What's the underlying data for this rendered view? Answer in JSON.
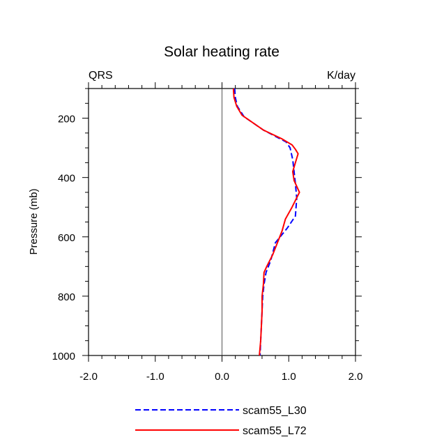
{
  "chart_data": {
    "type": "line",
    "title": "Solar heating rate",
    "left_label": "QRS",
    "right_label": "K/day",
    "ylabel": "Pressure (mb)",
    "xlabel": "",
    "xlim": [
      -2.0,
      2.0
    ],
    "ylim": [
      100,
      1000
    ],
    "y_inverted": true,
    "x_ticks": [
      -2.0,
      -1.0,
      0.0,
      1.0,
      2.0
    ],
    "x_tick_labels": [
      "-2.0",
      "-1.0",
      "0.0",
      "1.0",
      "2.0"
    ],
    "y_ticks": [
      200,
      400,
      600,
      800,
      1000
    ],
    "y_tick_labels": [
      "200",
      "400",
      "600",
      "800",
      "1000"
    ],
    "zero_line": 0.0,
    "series": [
      {
        "name": "scam55_L30",
        "color": "#0000ff",
        "dash": "dashed",
        "x": [
          0.19,
          0.2,
          0.23,
          0.33,
          0.62,
          0.96,
          1.02,
          1.06,
          1.08,
          1.1,
          1.12,
          1.1,
          0.98,
          0.8,
          0.73,
          0.66,
          0.63,
          0.61,
          0.6,
          0.59,
          0.58,
          0.57
        ],
        "y": [
          100,
          130,
          160,
          195,
          240,
          280,
          300,
          340,
          380,
          420,
          470,
          530,
          570,
          620,
          680,
          720,
          760,
          800,
          850,
          900,
          950,
          1000
        ]
      },
      {
        "name": "scam55_L72",
        "color": "#ff0000",
        "dash": "solid",
        "x": [
          0.17,
          0.18,
          0.22,
          0.3,
          0.62,
          0.9,
          1.05,
          1.1,
          1.14,
          1.12,
          1.1,
          1.06,
          1.08,
          1.16,
          1.05,
          0.95,
          0.9,
          0.83,
          0.76,
          0.67,
          0.63,
          0.62,
          0.6,
          0.6,
          0.59,
          0.58,
          0.56
        ],
        "y": [
          100,
          130,
          160,
          190,
          240,
          270,
          290,
          305,
          320,
          335,
          350,
          380,
          410,
          450,
          500,
          540,
          580,
          620,
          660,
          700,
          720,
          760,
          800,
          850,
          900,
          950,
          1000
        ]
      }
    ]
  }
}
